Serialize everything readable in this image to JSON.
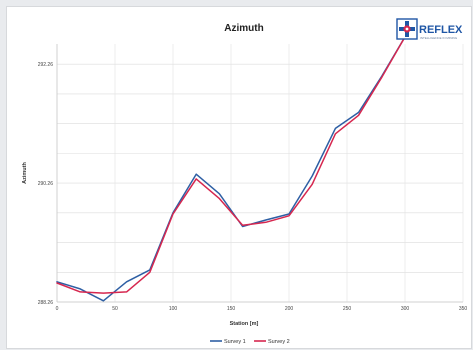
{
  "chart_data": {
    "type": "line",
    "title": "Azimuth",
    "xlabel": "Station [m]",
    "ylabel": "Azimuth",
    "xlim": [
      0,
      350
    ],
    "ylim": [
      288.26,
      292.6
    ],
    "x_ticks": [
      "0",
      "50",
      "100",
      "150",
      "200",
      "250",
      "300",
      "350"
    ],
    "y_ticks": [
      {
        "label": "288.26",
        "value": 288.26
      },
      {
        "label": "290.26",
        "value": 290.26
      },
      {
        "label": "292.26",
        "value": 292.26
      }
    ],
    "grid": true,
    "legend_position": "bottom",
    "series": [
      {
        "name": "Survey 1",
        "color": "#2e5fa4",
        "x": [
          0,
          20,
          40,
          60,
          80,
          100,
          120,
          140,
          160,
          180,
          200,
          220,
          240,
          260,
          280,
          300
        ],
        "y": [
          288.6,
          288.48,
          288.28,
          288.6,
          288.8,
          289.76,
          290.41,
          290.08,
          289.53,
          289.64,
          289.74,
          290.38,
          291.18,
          291.45,
          292.06,
          292.72
        ]
      },
      {
        "name": "Survey 2",
        "color": "#d6274f",
        "x": [
          0,
          20,
          40,
          60,
          80,
          100,
          120,
          140,
          160,
          180,
          200,
          220,
          240,
          260,
          280,
          300
        ],
        "y": [
          288.58,
          288.43,
          288.41,
          288.43,
          288.76,
          289.74,
          290.33,
          290.0,
          289.55,
          289.6,
          289.71,
          290.24,
          291.09,
          291.4,
          292.04,
          292.72
        ]
      }
    ]
  },
  "logo": {
    "text": "REFLEX",
    "tagline": "INTELLIGENCE IN MINING",
    "icon": "reflex-cross-logo",
    "colors": {
      "blue": "#1f56a5",
      "red": "#d6274f"
    }
  }
}
